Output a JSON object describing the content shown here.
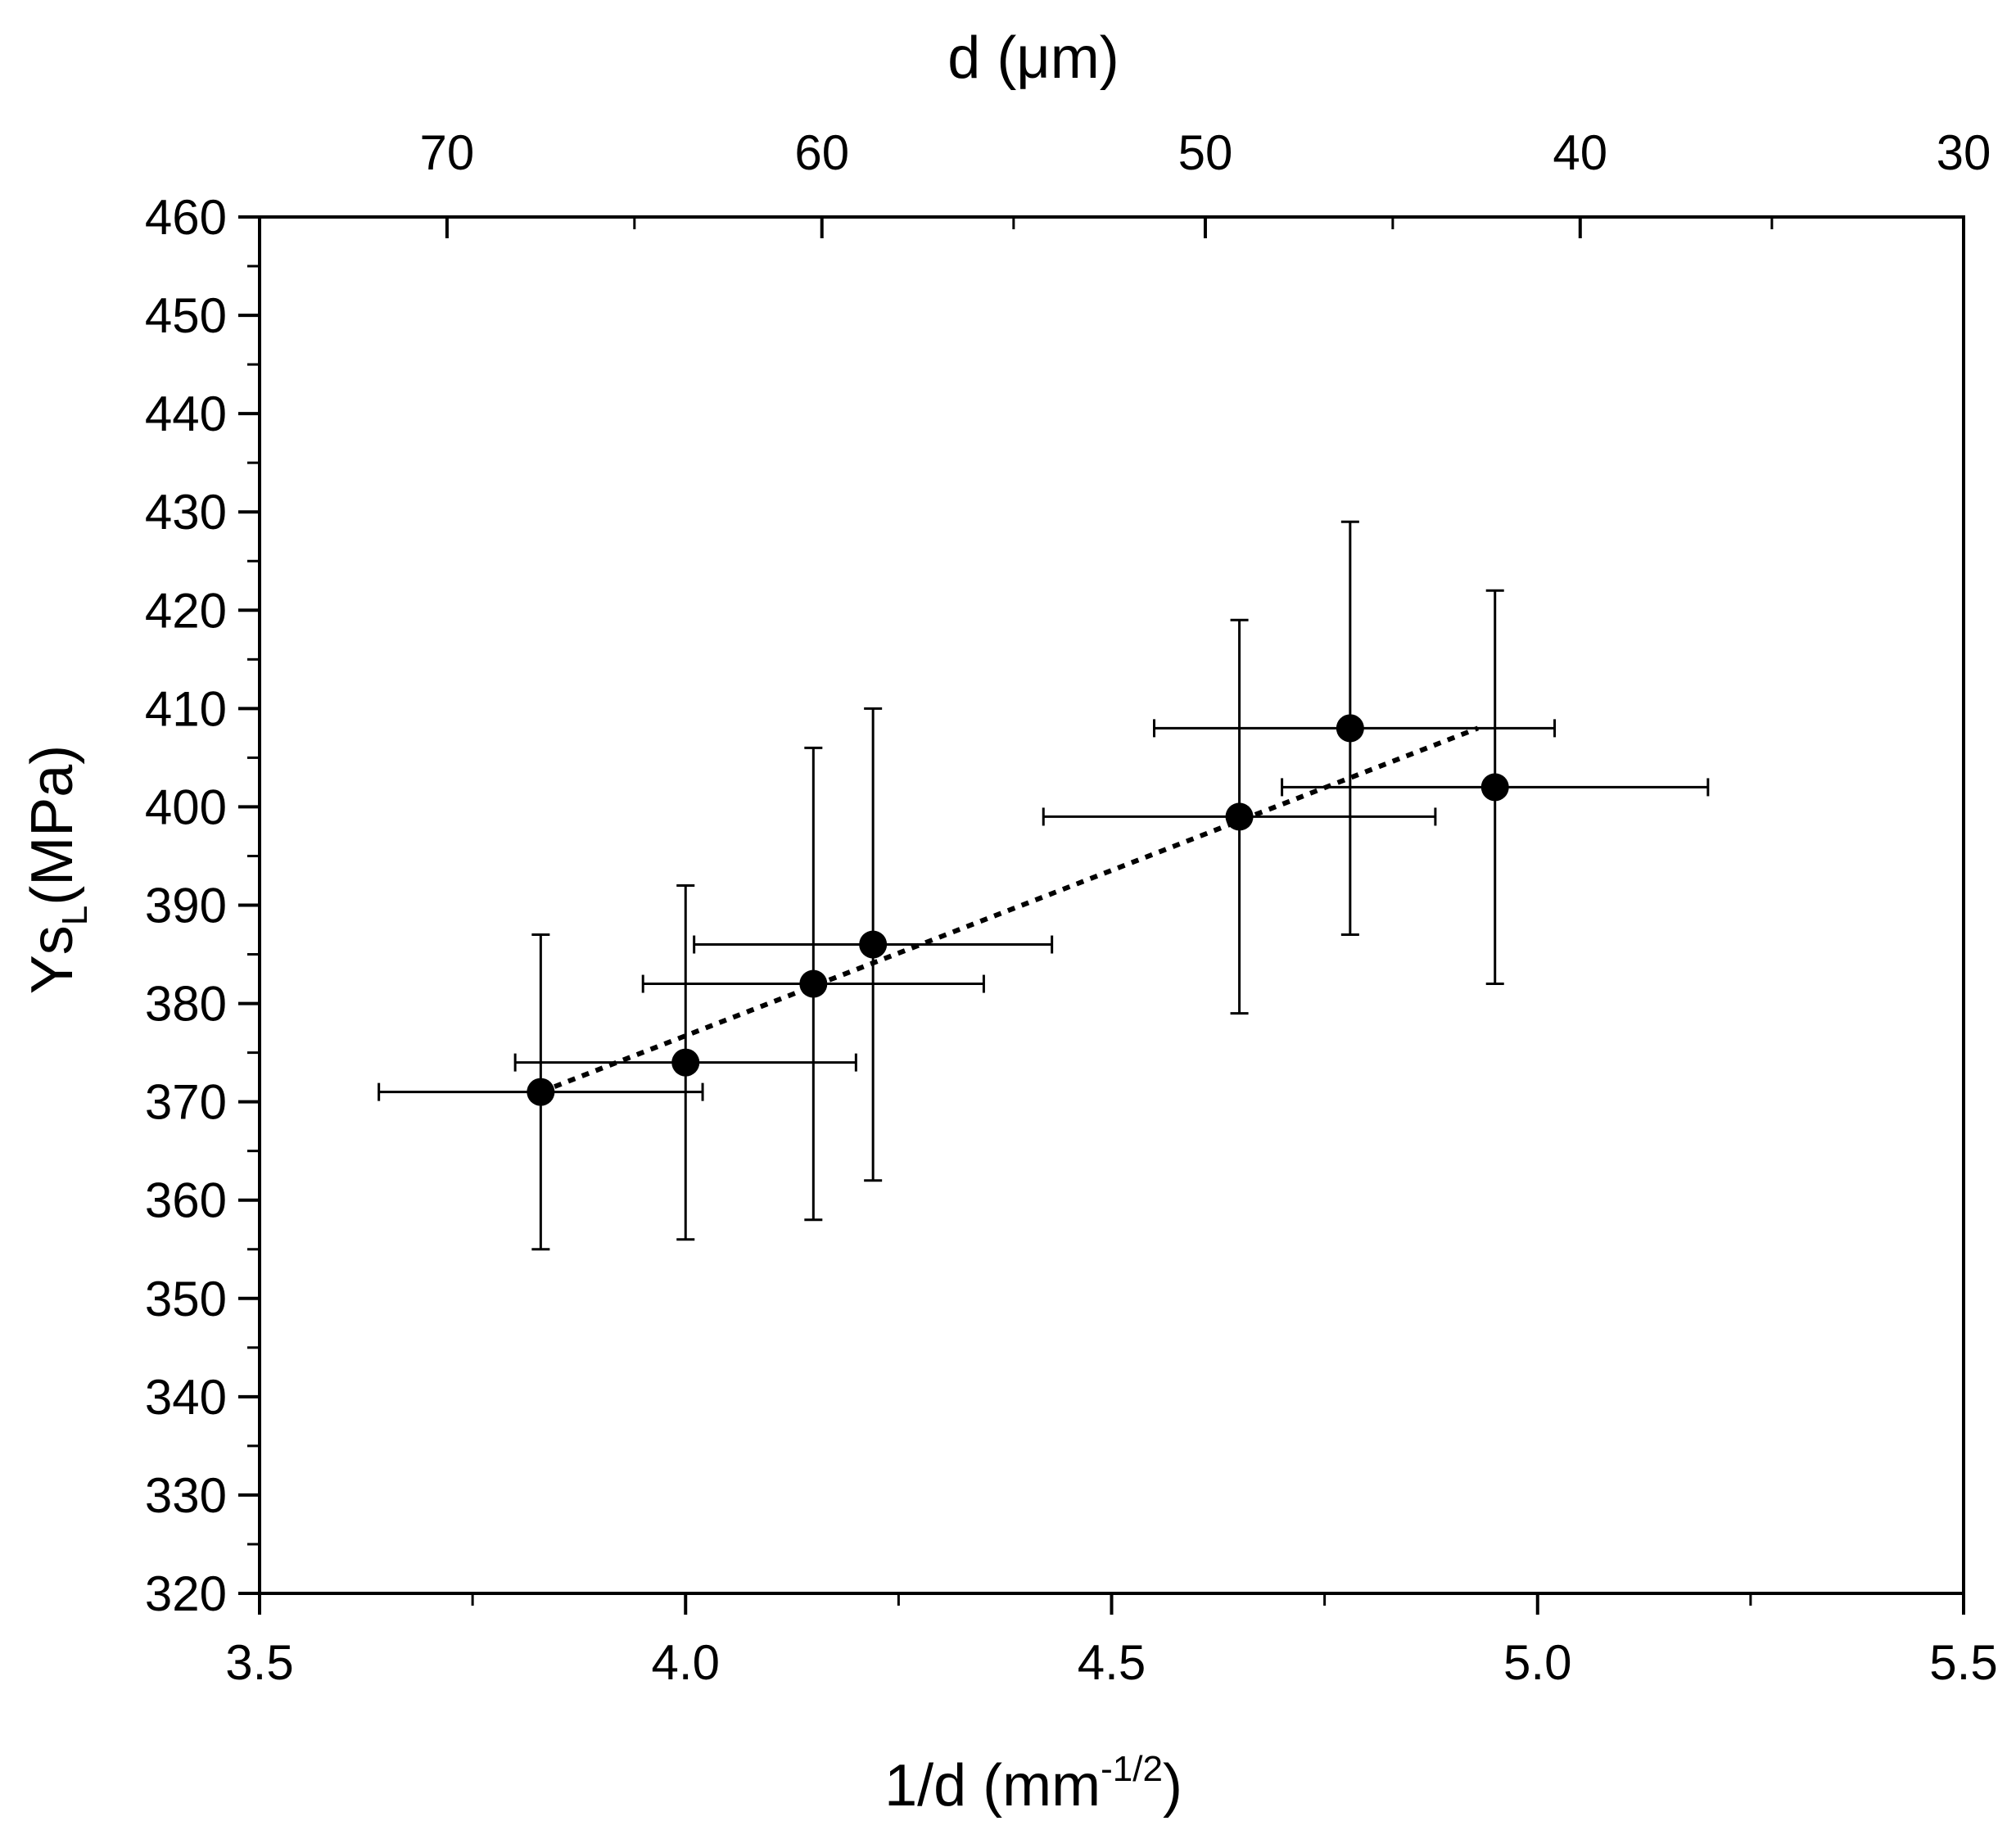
{
  "chart_data": {
    "type": "scatter",
    "title": "",
    "xlabel": "1/d (mm",
    "xlabel_sup": "-1/2",
    "xlabel_close": ")",
    "x2label": "d (μm)",
    "ylabel_main": "Ys",
    "ylabel_sub": "L",
    "ylabel_rest": "(MPa)",
    "xlim": [
      3.5,
      5.5
    ],
    "ylim": [
      320,
      460
    ],
    "x_ticks": [
      "3.5",
      "4.0",
      "4.5",
      "5.0",
      "5.5"
    ],
    "x_tick_values": [
      3.5,
      4.0,
      4.5,
      5.0,
      5.5
    ],
    "y_ticks": [
      "320",
      "330",
      "340",
      "350",
      "360",
      "370",
      "380",
      "390",
      "400",
      "410",
      "420",
      "430",
      "440",
      "450",
      "460"
    ],
    "y_tick_values": [
      320,
      330,
      340,
      350,
      360,
      370,
      380,
      390,
      400,
      410,
      420,
      430,
      440,
      450,
      460
    ],
    "top_ticks": [
      "70",
      "60",
      "50",
      "40",
      "30"
    ],
    "top_tick_values": [
      3.72,
      4.16,
      4.61,
      5.05,
      5.5
    ],
    "grid": false,
    "series": [
      {
        "name": "Ys_L",
        "marker": "filled-circle",
        "color": "#000000",
        "points": [
          {
            "x": 3.83,
            "y": 371,
            "xerr": [
              3.64,
              4.02
            ],
            "yerr": [
              355,
              387
            ]
          },
          {
            "x": 4.0,
            "y": 374,
            "xerr": [
              3.8,
              4.2
            ],
            "yerr": [
              356,
              392
            ]
          },
          {
            "x": 4.15,
            "y": 382,
            "xerr": [
              3.95,
              4.35
            ],
            "yerr": [
              358,
              406
            ]
          },
          {
            "x": 4.22,
            "y": 386,
            "xerr": [
              4.01,
              4.43
            ],
            "yerr": [
              362,
              410
            ]
          },
          {
            "x": 4.65,
            "y": 399,
            "xerr": [
              4.42,
              4.88
            ],
            "yerr": [
              379,
              419
            ]
          },
          {
            "x": 4.78,
            "y": 408,
            "xerr": [
              4.55,
              5.02
            ],
            "yerr": [
              387,
              429
            ]
          },
          {
            "x": 4.95,
            "y": 402,
            "xerr": [
              4.7,
              5.2
            ],
            "yerr": [
              382,
              422
            ]
          }
        ]
      }
    ],
    "fit_line": {
      "style": "dotted",
      "x": [
        3.83,
        4.93
      ],
      "y": [
        371,
        408
      ]
    }
  }
}
